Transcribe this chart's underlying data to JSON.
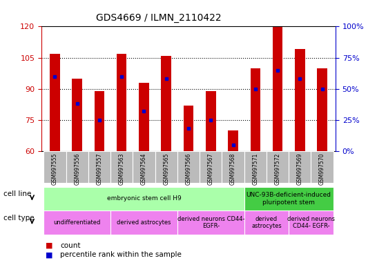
{
  "title": "GDS4669 / ILMN_2110422",
  "samples": [
    "GSM997555",
    "GSM997556",
    "GSM997557",
    "GSM997563",
    "GSM997564",
    "GSM997565",
    "GSM997566",
    "GSM997567",
    "GSM997568",
    "GSM997571",
    "GSM997572",
    "GSM997569",
    "GSM997570"
  ],
  "counts": [
    107,
    95,
    89,
    107,
    93,
    106,
    82,
    89,
    70,
    100,
    120,
    109,
    100
  ],
  "percentile_ranks": [
    60,
    38,
    25,
    60,
    32,
    58,
    18,
    25,
    5,
    50,
    65,
    58,
    50
  ],
  "ylim_left": [
    60,
    120
  ],
  "ylim_right": [
    0,
    100
  ],
  "yticks_left": [
    60,
    75,
    90,
    105,
    120
  ],
  "yticks_right": [
    0,
    25,
    50,
    75,
    100
  ],
  "left_axis_color": "#cc0000",
  "right_axis_color": "#0000cc",
  "bar_color": "#cc0000",
  "dot_color": "#0000cc",
  "tick_bg_color": "#bbbbbb",
  "cell_line_groups": [
    {
      "label": "embryonic stem cell H9",
      "start": 0,
      "end": 9,
      "color": "#aaffaa"
    },
    {
      "label": "UNC-93B-deficient-induced\npluripotent stem",
      "start": 9,
      "end": 13,
      "color": "#44cc44"
    }
  ],
  "cell_type_groups": [
    {
      "label": "undifferentiated",
      "start": 0,
      "end": 3,
      "color": "#ee82ee"
    },
    {
      "label": "derived astrocytes",
      "start": 3,
      "end": 6,
      "color": "#ee82ee"
    },
    {
      "label": "derived neurons CD44-\nEGFR-",
      "start": 6,
      "end": 9,
      "color": "#ee82ee"
    },
    {
      "label": "derived\nastrocytes",
      "start": 9,
      "end": 11,
      "color": "#ee82ee"
    },
    {
      "label": "derived neurons\nCD44- EGFR-",
      "start": 11,
      "end": 13,
      "color": "#ee82ee"
    }
  ],
  "legend_count_color": "#cc0000",
  "legend_rank_color": "#0000cc",
  "cell_line_label": "cell line",
  "cell_type_label": "cell type",
  "legend_count_text": "count",
  "legend_rank_text": "percentile rank within the sample",
  "bar_width": 0.45
}
